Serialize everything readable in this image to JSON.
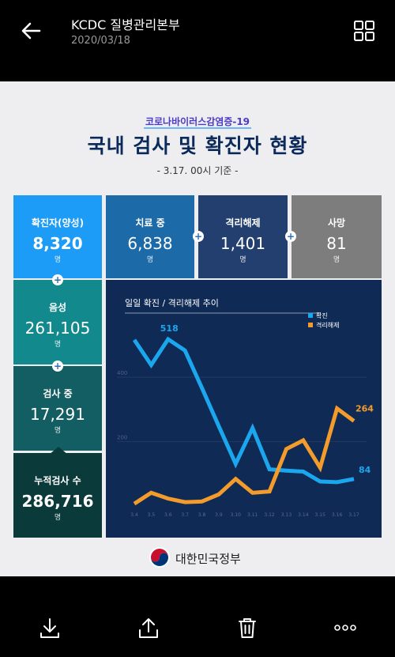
{
  "header": {
    "title": "KCDC 질병관리본부",
    "date": "2020/03/18"
  },
  "infographic": {
    "subtitle": "코로나바이러스감염증-19",
    "title": "국내 검사 및 확진자 현황",
    "basis": "- 3.17. 00시 기준 -",
    "unit": "명",
    "stats": {
      "confirmed": {
        "label": "확진자(양성)",
        "value": "8,320"
      },
      "treatment": {
        "label": "치료 중",
        "value": "6,838"
      },
      "released": {
        "label": "격리해제",
        "value": "1,401"
      },
      "deaths": {
        "label": "사망",
        "value": "81"
      },
      "negative": {
        "label": "음성",
        "value": "261,105"
      },
      "testing": {
        "label": "검사 중",
        "value": "17,291"
      },
      "total": {
        "label": "누적검사 수",
        "value": "286,716"
      }
    },
    "footer": "대한민국정부"
  },
  "chart_data": {
    "type": "line",
    "title": "일일 확진 / 격리해제 추이",
    "categories": [
      "3.4",
      "3.5",
      "3.6",
      "3.7",
      "3.8",
      "3.9",
      "3.10",
      "3.11",
      "3.12",
      "3.13",
      "3.14",
      "3.15",
      "3.16",
      "3.17"
    ],
    "ylim": [
      0,
      560
    ],
    "yticks": [
      200,
      400
    ],
    "series": [
      {
        "name": "확진",
        "color": "#1ba7ee",
        "values": [
          516,
          438,
          518,
          483,
          367,
          248,
          131,
          242,
          114,
          110,
          107,
          76,
          74,
          84
        ]
      },
      {
        "name": "격리해제",
        "color": "#f39c2b",
        "values": [
          7,
          41,
          23,
          12,
          14,
          36,
          84,
          41,
          45,
          177,
          204,
          119,
          303,
          264
        ]
      }
    ],
    "labels": {
      "peak": "518",
      "last_confirmed": "84",
      "last_released": "264"
    }
  },
  "colors": {
    "confirmed": "#1c9cf6",
    "treatment": "#1c6aa8",
    "released": "#223f6f",
    "deaths": "#7d7d7d",
    "negative": "#12898d",
    "testing": "#135e62",
    "total": "#0a3a3a"
  }
}
